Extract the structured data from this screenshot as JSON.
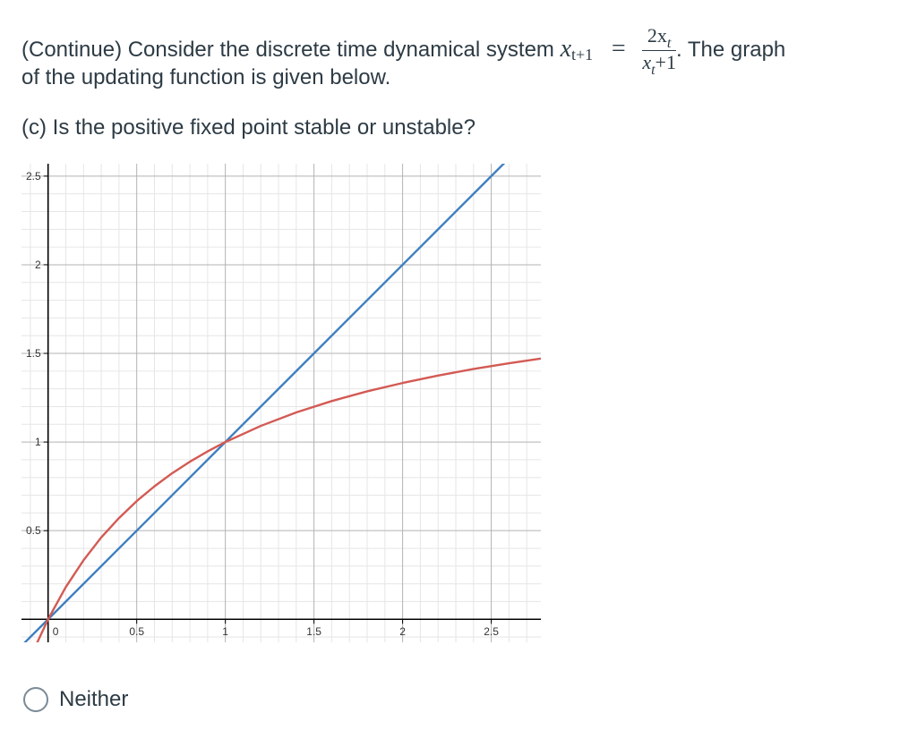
{
  "question": {
    "line1_prefix": "(Continue) Consider the discrete time dynamical system",
    "lhs_var": "x",
    "lhs_sub": "t+1",
    "equals": "=",
    "frac_num": "2x",
    "frac_num_sub": "t",
    "frac_den_var": "x",
    "frac_den_sub": "t",
    "frac_den_rest": "+1",
    "line1_suffix": ". The graph",
    "line2": "of the updating function is given below.",
    "part_c": "(c) Is the positive fixed point stable or unstable?"
  },
  "option": {
    "label": "Neither"
  },
  "chart_data": {
    "type": "line",
    "title": "",
    "xlabel": "",
    "ylabel": "",
    "xlim": [
      -0.15,
      2.78
    ],
    "ylim": [
      -0.13,
      2.57
    ],
    "grid": true,
    "minor_grid_step": 0.1,
    "major_grid_step": 0.5,
    "x_ticks": [
      "0",
      "0.5",
      "1",
      "1.5",
      "2",
      "2.5"
    ],
    "y_ticks": [
      "0.5",
      "1",
      "1.5",
      "2",
      "2.5"
    ],
    "colors": {
      "identity": "#3f7fbf",
      "updating_function": "#d35a54",
      "axis": "#000000"
    },
    "series": [
      {
        "key": "identity",
        "x": [
          -0.15,
          0,
          0.5,
          1,
          1.5,
          2,
          2.5,
          2.6
        ],
        "y": [
          -0.15,
          0,
          0.5,
          1,
          1.5,
          2,
          2.5,
          2.6
        ]
      },
      {
        "key": "updating_function",
        "x": [
          -0.07,
          0,
          0.1,
          0.2,
          0.3,
          0.4,
          0.5,
          0.6,
          0.7,
          0.8,
          0.9,
          1.0,
          1.2,
          1.4,
          1.6,
          1.8,
          2.0,
          2.2,
          2.4,
          2.6,
          2.78
        ],
        "y": [
          -0.15,
          0,
          0.182,
          0.333,
          0.462,
          0.571,
          0.667,
          0.75,
          0.824,
          0.889,
          0.947,
          1.0,
          1.091,
          1.167,
          1.231,
          1.286,
          1.333,
          1.375,
          1.412,
          1.444,
          1.471
        ]
      }
    ]
  }
}
